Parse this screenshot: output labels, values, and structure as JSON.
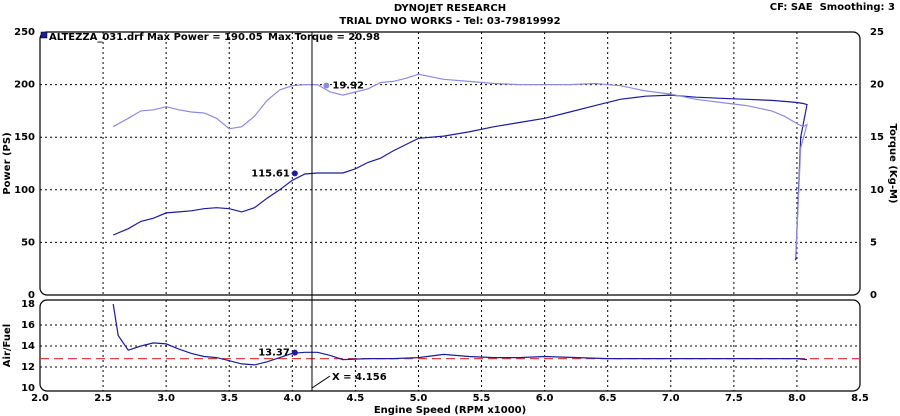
{
  "header": {
    "title": "DYNOJET RESEARCH",
    "subtitle": "TRIAL DYNO WORKS - Tel: 03-79819992",
    "settings": "CF: SAE  Smoothing: 3"
  },
  "chart_data": [
    {
      "type": "line",
      "legend_text": [
        "ALTEZZA_031.drf Max Power = 190.05",
        "Max Torque = 20.98"
      ],
      "y_label": "Power (PS)",
      "y2_label": "Torque (Kg-M)",
      "xlim": [
        2,
        8.5
      ],
      "xticks": [
        2,
        2.5,
        3,
        3.5,
        4,
        4.5,
        5,
        5.5,
        6,
        6.5,
        7,
        7.5,
        8,
        8.5
      ],
      "ylim": [
        0,
        250
      ],
      "yticks": [
        0,
        50,
        100,
        150,
        200,
        250
      ],
      "y2lim": [
        0,
        25
      ],
      "y2ticks": [
        0,
        5,
        10,
        15,
        20,
        25
      ],
      "grid": true,
      "x": [
        2.58,
        2.7,
        2.8,
        2.9,
        3.0,
        3.1,
        3.2,
        3.3,
        3.4,
        3.5,
        3.6,
        3.7,
        3.8,
        3.9,
        4.0,
        4.1,
        4.2,
        4.3,
        4.4,
        4.5,
        4.6,
        4.7,
        4.8,
        4.9,
        5.0,
        5.2,
        5.4,
        5.6,
        5.8,
        6.0,
        6.2,
        6.4,
        6.6,
        6.8,
        7.0,
        7.2,
        7.4,
        7.6,
        7.8,
        7.9,
        8.0,
        8.05,
        8.08,
        8.03,
        7.99
      ],
      "series": [
        {
          "name": "Power",
          "color": "#1c1c9c",
          "values": [
            57,
            63,
            70,
            73,
            78,
            79,
            80,
            82,
            83,
            82,
            79,
            83,
            92,
            100,
            109,
            115,
            116,
            116,
            116,
            120,
            126,
            130,
            137,
            143,
            149,
            151,
            155,
            160,
            164,
            168,
            174,
            180,
            186,
            189,
            190,
            188,
            187,
            186,
            185,
            184,
            183,
            182,
            181,
            150,
            33
          ]
        },
        {
          "name": "Torque",
          "color": "#8c8ce0",
          "axis": "y2",
          "values": [
            16,
            16.8,
            17.5,
            17.6,
            17.9,
            17.6,
            17.4,
            17.3,
            16.8,
            15.8,
            16.0,
            17.0,
            18.5,
            19.5,
            19.9,
            20.0,
            20.0,
            19.3,
            19.0,
            19.3,
            19.6,
            20.2,
            20.3,
            20.6,
            20.98,
            20.5,
            20.3,
            20.1,
            20.0,
            20.0,
            20.0,
            20.1,
            19.9,
            19.4,
            19.1,
            18.6,
            18.3,
            18.0,
            17.5,
            17.0,
            16.3,
            16.0,
            16.2,
            14,
            3.5
          ]
        }
      ],
      "annotations": [
        {
          "x": 4.02,
          "value": 115.61,
          "color": "#1c1c9c",
          "axis": "y",
          "side": "left"
        },
        {
          "x": 4.27,
          "value": 19.92,
          "color": "#8c8ce0",
          "axis": "y2",
          "side": "right"
        }
      ]
    },
    {
      "type": "line",
      "y_label": "Air/Fuel",
      "x_label": "Engine Speed (RPM x1000)",
      "xlim": [
        2,
        8.5
      ],
      "xticks": [
        {
          "value": 2,
          "label": "2.0"
        },
        2.5,
        {
          "value": 3,
          "label": "3.0"
        },
        3.5,
        {
          "value": 4,
          "label": "4.0"
        },
        4.5,
        {
          "value": 5,
          "label": "5.0"
        },
        5.5,
        {
          "value": 6,
          "label": "6.0"
        },
        6.5,
        {
          "value": 7,
          "label": "7.0"
        },
        7.5,
        {
          "value": 8,
          "label": "8.0"
        },
        8.5
      ],
      "ylim": [
        10,
        18
      ],
      "yticks": [
        10,
        12,
        14,
        16,
        18
      ],
      "grid": true,
      "x": [
        2.58,
        2.62,
        2.7,
        2.8,
        2.9,
        3.0,
        3.1,
        3.2,
        3.3,
        3.4,
        3.5,
        3.6,
        3.7,
        3.8,
        3.9,
        4.0,
        4.1,
        4.2,
        4.3,
        4.4,
        4.6,
        4.8,
        5.0,
        5.2,
        5.4,
        5.6,
        5.8,
        6.0,
        6.5,
        7.0,
        7.5,
        8.0,
        8.08
      ],
      "series": [
        {
          "name": "Air/Fuel",
          "color": "#1c1c9c",
          "values": [
            18,
            15,
            13.6,
            14.0,
            14.3,
            14.2,
            13.7,
            13.3,
            13.0,
            12.9,
            12.6,
            12.3,
            12.2,
            12.5,
            12.9,
            13.3,
            13.4,
            13.4,
            13.1,
            12.7,
            12.8,
            12.8,
            12.9,
            13.2,
            13.0,
            12.9,
            12.9,
            13.0,
            12.8,
            12.8,
            12.8,
            12.8,
            12.7
          ]
        }
      ],
      "reference_line": {
        "value": 12.8,
        "color": "#e04040"
      },
      "annotations": [
        {
          "x": 4.02,
          "value": 13.37,
          "color": "#1c1c9c",
          "axis": "y",
          "side": "left"
        }
      ],
      "cursor": {
        "x": 4.156,
        "label": "X = 4.156"
      }
    }
  ]
}
